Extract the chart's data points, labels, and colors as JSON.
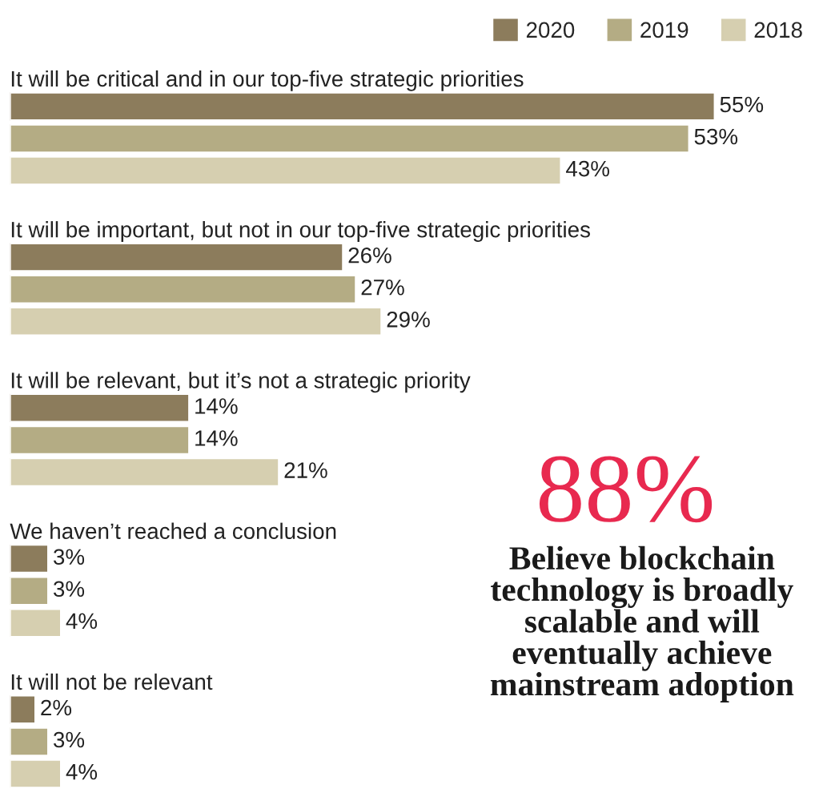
{
  "chart_data": {
    "type": "bar",
    "orientation": "horizontal",
    "categories": [
      "It will be critical and in our top-five strategic priorities",
      "It will be important, but not in our top-five strategic priorities",
      "It will be relevant, but it’s not a strategic priority",
      "We haven’t reached a conclusion",
      "It will not be relevant"
    ],
    "series": [
      {
        "name": "2020",
        "color": "#8c7c5c",
        "values": [
          55,
          26,
          14,
          3,
          2
        ],
        "value_labels": [
          "55%",
          "26%",
          "14%",
          "3%",
          "2%"
        ]
      },
      {
        "name": "2019",
        "color": "#b4ac84",
        "values": [
          53,
          27,
          14,
          3,
          3
        ],
        "value_labels": [
          "53%",
          "27%",
          "14%",
          "3%",
          "3%"
        ]
      },
      {
        "name": "2018",
        "color": "#d6cfb0",
        "values": [
          43,
          29,
          21,
          4,
          4
        ],
        "value_labels": [
          "43%",
          "29%",
          "21%",
          "4%",
          "4%"
        ]
      }
    ],
    "legend": "top right",
    "annotations": [
      "88%",
      "Believe blockchain technology is broadly scalable and will eventually achieve mainstream adoption"
    ]
  }
}
